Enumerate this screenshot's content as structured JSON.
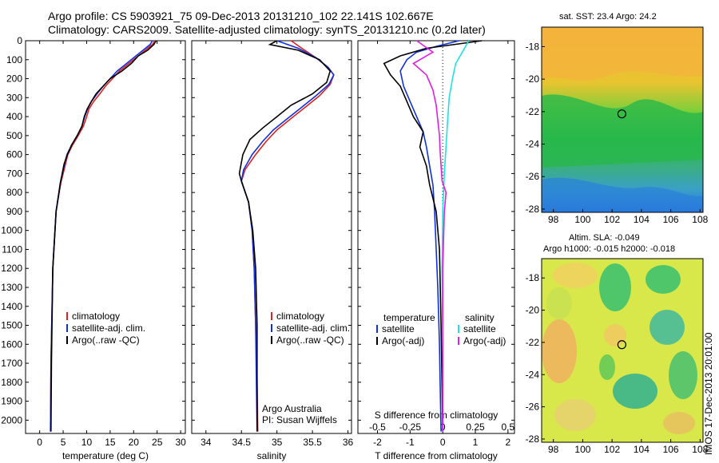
{
  "header": {
    "line1": "Argo profile: CS 5903921_75 09-Dec-2013 20131210_102 22.141S 102.667E",
    "line2": "Climatology: CARS2009. Satellite-adjusted climatology: synTS_20131210.nc (0.2d later)"
  },
  "colors": {
    "climatology": "#e02020",
    "satellite": "#1030e0",
    "argo": "#000000",
    "sal_satellite": "#20e0e0",
    "sal_argo": "#e020e0"
  },
  "depth_axis": {
    "ticks": [
      0,
      100,
      200,
      300,
      400,
      500,
      600,
      700,
      800,
      900,
      1000,
      1100,
      1200,
      1300,
      1400,
      1500,
      1600,
      1700,
      1800,
      1900,
      2000
    ],
    "ylim": [
      0,
      2070
    ]
  },
  "chart_data": [
    {
      "type": "line",
      "xlabel": "temperature (deg C)",
      "ylabel": "",
      "xticks": [
        0,
        5,
        10,
        15,
        20,
        25,
        30
      ],
      "xlim": [
        -3,
        31
      ],
      "legend": [
        "climatology",
        "satellite-adj. clim.",
        "Argo(..raw -QC)"
      ],
      "series": [
        {
          "name": "climatology",
          "x": [
            24.5,
            24,
            22.5,
            21,
            19,
            17,
            15.5,
            14,
            12.8,
            11.5,
            10.5,
            10,
            9.3,
            8.2,
            7,
            6,
            5.5,
            4.5,
            3.5,
            2.8,
            2.4,
            2.3
          ],
          "y": [
            0,
            20,
            50,
            80,
            120,
            160,
            200,
            240,
            280,
            320,
            360,
            400,
            450,
            500,
            550,
            600,
            650,
            750,
            900,
            1200,
            1700,
            2060
          ]
        },
        {
          "name": "satellite-adj. clim.",
          "x": [
            24,
            23.5,
            22,
            20.5,
            18.5,
            16.5,
            15,
            13.5,
            12.2,
            11,
            10.2,
            9.6,
            9,
            8,
            6.8,
            5.8,
            5.3,
            4.4,
            3.5,
            2.8,
            2.4,
            2.3
          ],
          "y": [
            0,
            20,
            50,
            80,
            120,
            160,
            200,
            240,
            280,
            320,
            360,
            400,
            450,
            500,
            550,
            600,
            650,
            750,
            900,
            1200,
            1700,
            2060
          ]
        },
        {
          "name": "Argo(..raw -QC)",
          "x": [
            24.8,
            24.3,
            23,
            21,
            19.5,
            17.5,
            15,
            13.5,
            12,
            11,
            10.1,
            9.5,
            9,
            8,
            6.8,
            5.9,
            5.2,
            4.4,
            3.5,
            2.8,
            2.5,
            2.4
          ],
          "y": [
            0,
            20,
            50,
            80,
            120,
            160,
            200,
            240,
            280,
            320,
            360,
            400,
            450,
            500,
            550,
            600,
            650,
            750,
            900,
            1200,
            1700,
            2060
          ]
        }
      ]
    },
    {
      "type": "line",
      "xlabel": "salinity",
      "ylabel": "",
      "xticks": [
        34,
        34.5,
        35,
        35.5,
        36
      ],
      "xlim": [
        33.8,
        36.05
      ],
      "legend": [
        "climatology",
        "satellite-adj. clim.",
        "Argo(..raw -QC)"
      ],
      "series": [
        {
          "name": "climatology",
          "x": [
            35.2,
            35.35,
            35.55,
            35.72,
            35.8,
            35.75,
            35.6,
            35.4,
            35.2,
            35.0,
            34.85,
            34.7,
            34.55,
            34.5,
            34.6,
            34.65,
            34.68,
            34.7,
            34.72,
            34.73
          ],
          "y": [
            0,
            40,
            90,
            140,
            180,
            230,
            290,
            350,
            410,
            470,
            530,
            600,
            680,
            740,
            850,
            1000,
            1200,
            1500,
            1800,
            2060
          ]
        },
        {
          "name": "satellite-adj. clim.",
          "x": [
            35.0,
            35.3,
            35.55,
            35.72,
            35.8,
            35.73,
            35.55,
            35.35,
            35.15,
            34.95,
            34.8,
            34.65,
            34.53,
            34.5,
            34.6,
            34.65,
            34.68,
            34.7,
            34.71,
            34.72
          ],
          "y": [
            0,
            40,
            90,
            140,
            180,
            230,
            290,
            350,
            410,
            470,
            530,
            600,
            680,
            740,
            850,
            1000,
            1200,
            1500,
            1800,
            2060
          ]
        },
        {
          "name": "Argo(..raw -QC)",
          "x": [
            35.0,
            34.9,
            35.3,
            35.6,
            35.75,
            35.7,
            35.5,
            35.2,
            35.0,
            34.8,
            34.62,
            34.52,
            34.47,
            34.5,
            34.6,
            34.66,
            34.7,
            34.72,
            34.72
          ],
          "y": [
            0,
            20,
            50,
            100,
            160,
            220,
            280,
            340,
            400,
            460,
            520,
            600,
            700,
            740,
            850,
            1000,
            1200,
            1500,
            2060
          ]
        }
      ],
      "annotation": [
        "Argo Australia",
        "PI: Susan Wijffels"
      ]
    },
    {
      "type": "line",
      "xlabel": "T difference from climatology",
      "xlabel_top": "S difference from climatology",
      "xticks": [
        -2,
        -1,
        0,
        1,
        2
      ],
      "xticks_top": [
        "-0.5",
        "-0.25",
        "0",
        "0.25",
        "0.5"
      ],
      "xlim": [
        -2.6,
        2.2
      ],
      "legend_headers": [
        "temperature",
        "salinity"
      ],
      "legend": [
        "satellite",
        "Argo(-adj)",
        "satellite",
        "Argo(-adj)"
      ],
      "series": [
        {
          "name": "temperature satellite",
          "x": [
            0.5,
            -0.2,
            -0.8,
            -1.1,
            -1.3,
            -1.2,
            -1.0,
            -0.8,
            -0.6,
            -0.5,
            -0.4,
            -0.3,
            -0.25,
            -0.2,
            -0.15,
            -0.1,
            -0.08,
            -0.05
          ],
          "y": [
            0,
            30,
            60,
            100,
            160,
            240,
            320,
            400,
            480,
            560,
            660,
            760,
            900,
            1100,
            1300,
            1600,
            1800,
            2060
          ]
        },
        {
          "name": "temperature Argo(-adj)",
          "x": [
            1.2,
            -0.5,
            -1.3,
            -1.8,
            -1.6,
            -1.3,
            -1.1,
            -0.9,
            -0.6,
            -0.7,
            -0.5,
            -0.4,
            -0.2,
            -0.1,
            -0.05,
            0
          ],
          "y": [
            0,
            40,
            80,
            120,
            180,
            240,
            320,
            400,
            480,
            560,
            660,
            760,
            900,
            1100,
            1500,
            2060
          ]
        },
        {
          "name": "salinity satellite",
          "x": [
            0.8,
            0.6,
            0.4,
            0.3,
            0.2,
            0.15,
            0.1,
            0.05,
            0,
            -0.02,
            0,
            0
          ],
          "y": [
            0,
            60,
            120,
            200,
            300,
            420,
            560,
            700,
            900,
            1200,
            1600,
            2060
          ]
        },
        {
          "name": "salinity Argo(-adj)",
          "x": [
            -0.8,
            -0.3,
            -0.9,
            -0.5,
            -0.3,
            -0.2,
            -0.15,
            -0.1,
            -0.08,
            -0.05,
            -0.02,
            0.1,
            0.05,
            0,
            0
          ],
          "y": [
            0,
            60,
            120,
            180,
            260,
            340,
            420,
            500,
            580,
            660,
            740,
            800,
            900,
            1200,
            2060
          ]
        }
      ]
    }
  ],
  "maps": {
    "sst": {
      "title": "sat. SST: 23.4  Argo: 24.2",
      "xticks": [
        "98",
        "100",
        "102",
        "104",
        "106",
        "108"
      ],
      "yticks": [
        "-18",
        "-20",
        "-22",
        "-24",
        "-26",
        "-28"
      ],
      "marker": {
        "lon": 102.667,
        "lat": -22.141
      }
    },
    "sla": {
      "title1": "Altim. SLA: -0.049",
      "title2": "Argo h1000: -0.015 h2000: -0.018",
      "xticks": [
        "98",
        "100",
        "102",
        "104",
        "106",
        "108"
      ],
      "yticks": [
        "-18",
        "-20",
        "-22",
        "-24",
        "-26",
        "-28"
      ],
      "marker": {
        "lon": 102.667,
        "lat": -22.141
      }
    }
  },
  "footer": {
    "stamp": "IMOS 17-Dec-2013 20:01:00"
  }
}
